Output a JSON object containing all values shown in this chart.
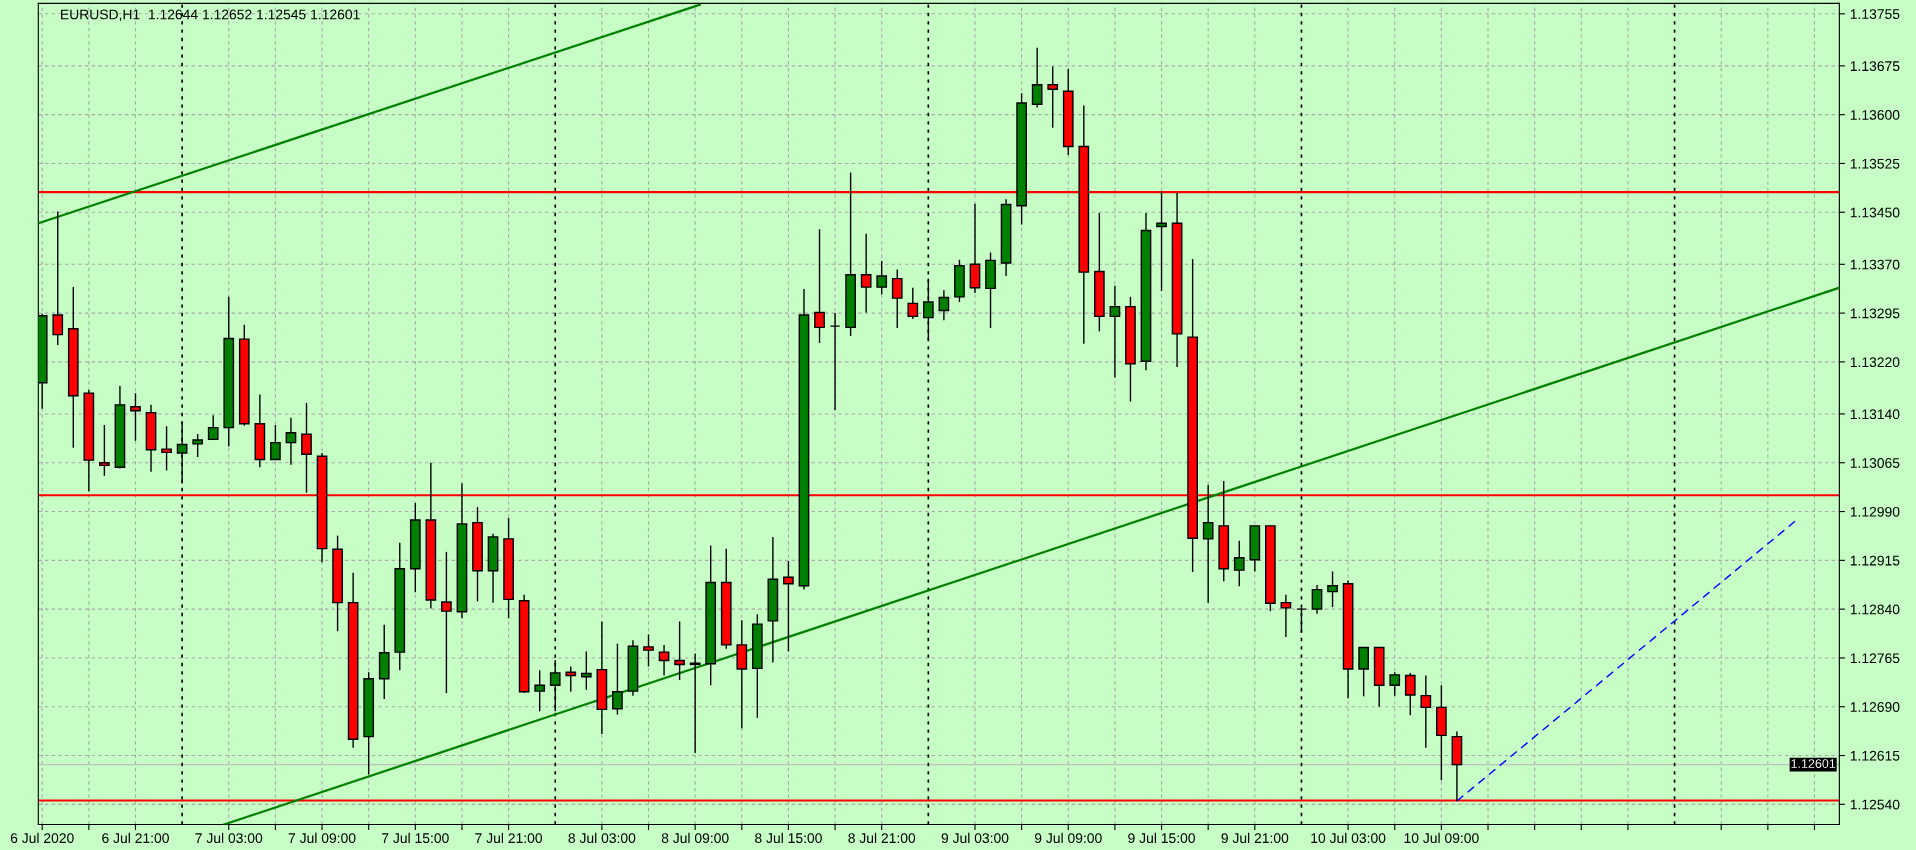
{
  "chart_data": {
    "type": "candlestick",
    "title": "EURUSD,H1  1.12644 1.12652 1.12545 1.12601",
    "x": [
      "2020-07-06T15:00",
      "2020-07-06T16:00",
      "2020-07-06T17:00",
      "2020-07-06T18:00",
      "2020-07-06T19:00",
      "2020-07-06T20:00",
      "2020-07-06T21:00",
      "2020-07-06T22:00",
      "2020-07-06T23:00",
      "2020-07-07T00:00",
      "2020-07-07T01:00",
      "2020-07-07T02:00",
      "2020-07-07T03:00",
      "2020-07-07T04:00",
      "2020-07-07T05:00",
      "2020-07-07T06:00",
      "2020-07-07T07:00",
      "2020-07-07T08:00",
      "2020-07-07T09:00",
      "2020-07-07T10:00",
      "2020-07-07T11:00",
      "2020-07-07T12:00",
      "2020-07-07T13:00",
      "2020-07-07T14:00",
      "2020-07-07T15:00",
      "2020-07-07T16:00",
      "2020-07-07T17:00",
      "2020-07-07T18:00",
      "2020-07-07T19:00",
      "2020-07-07T20:00",
      "2020-07-07T21:00",
      "2020-07-07T22:00",
      "2020-07-07T23:00",
      "2020-07-08T00:00",
      "2020-07-08T01:00",
      "2020-07-08T02:00",
      "2020-07-08T03:00",
      "2020-07-08T04:00",
      "2020-07-08T05:00",
      "2020-07-08T06:00",
      "2020-07-08T07:00",
      "2020-07-08T08:00",
      "2020-07-08T09:00",
      "2020-07-08T10:00",
      "2020-07-08T11:00",
      "2020-07-08T12:00",
      "2020-07-08T13:00",
      "2020-07-08T14:00",
      "2020-07-08T15:00",
      "2020-07-08T16:00",
      "2020-07-08T17:00",
      "2020-07-08T18:00",
      "2020-07-08T19:00",
      "2020-07-08T20:00",
      "2020-07-08T21:00",
      "2020-07-08T22:00",
      "2020-07-08T23:00",
      "2020-07-09T00:00",
      "2020-07-09T01:00",
      "2020-07-09T02:00",
      "2020-07-09T03:00",
      "2020-07-09T04:00",
      "2020-07-09T05:00",
      "2020-07-09T06:00",
      "2020-07-09T07:00",
      "2020-07-09T08:00",
      "2020-07-09T09:00",
      "2020-07-09T10:00",
      "2020-07-09T11:00",
      "2020-07-09T12:00",
      "2020-07-09T13:00",
      "2020-07-09T14:00",
      "2020-07-09T15:00",
      "2020-07-09T16:00",
      "2020-07-09T17:00",
      "2020-07-09T18:00",
      "2020-07-09T19:00",
      "2020-07-09T20:00",
      "2020-07-09T21:00",
      "2020-07-09T22:00",
      "2020-07-09T23:00",
      "2020-07-10T00:00",
      "2020-07-10T01:00",
      "2020-07-10T02:00",
      "2020-07-10T03:00",
      "2020-07-10T04:00",
      "2020-07-10T05:00",
      "2020-07-10T06:00",
      "2020-07-10T07:00",
      "2020-07-10T08:00",
      "2020-07-10T09:00",
      "2020-07-10T10:00"
    ],
    "ohlc": [
      [
        1.13188,
        1.13294,
        1.13148,
        1.13291
      ],
      [
        1.13292,
        1.13451,
        1.13246,
        1.13262
      ],
      [
        1.13271,
        1.13335,
        1.13088,
        1.13168
      ],
      [
        1.13172,
        1.13177,
        1.13021,
        1.13069
      ],
      [
        1.13065,
        1.13123,
        1.13045,
        1.13061
      ],
      [
        1.13058,
        1.13183,
        1.13056,
        1.13154
      ],
      [
        1.13151,
        1.13172,
        1.13099,
        1.13145
      ],
      [
        1.13142,
        1.13154,
        1.13051,
        1.13085
      ],
      [
        1.13086,
        1.13121,
        1.13053,
        1.13081
      ],
      [
        1.1308,
        1.13128,
        1.13033,
        1.13093
      ],
      [
        1.13094,
        1.13109,
        1.13074,
        1.131
      ],
      [
        1.13101,
        1.13138,
        1.13101,
        1.13119
      ],
      [
        1.13119,
        1.1332,
        1.1309,
        1.13256
      ],
      [
        1.13255,
        1.13277,
        1.13122,
        1.13125
      ],
      [
        1.13125,
        1.1317,
        1.13058,
        1.1307
      ],
      [
        1.1307,
        1.13123,
        1.1307,
        1.13096
      ],
      [
        1.13096,
        1.13134,
        1.13062,
        1.13111
      ],
      [
        1.13109,
        1.13157,
        1.13019,
        1.13078
      ],
      [
        1.13075,
        1.1308,
        1.12912,
        1.12933
      ],
      [
        1.12932,
        1.12953,
        1.12806,
        1.1285
      ],
      [
        1.1285,
        1.12896,
        1.12627,
        1.1264
      ],
      [
        1.12644,
        1.12743,
        1.12586,
        1.12733
      ],
      [
        1.12733,
        1.12816,
        1.12702,
        1.12773
      ],
      [
        1.12774,
        1.12942,
        1.12746,
        1.12902
      ],
      [
        1.12902,
        1.13003,
        1.12866,
        1.12977
      ],
      [
        1.12977,
        1.13065,
        1.12841,
        1.12854
      ],
      [
        1.12851,
        1.12928,
        1.12711,
        1.12837
      ],
      [
        1.12836,
        1.13033,
        1.12826,
        1.12971
      ],
      [
        1.12973,
        1.12997,
        1.12852,
        1.12899
      ],
      [
        1.12899,
        1.12956,
        1.1285,
        1.12951
      ],
      [
        1.12948,
        1.1298,
        1.12826,
        1.12855
      ],
      [
        1.12853,
        1.12862,
        1.12711,
        1.12713
      ],
      [
        1.12714,
        1.12746,
        1.12683,
        1.12723
      ],
      [
        1.12723,
        1.12762,
        1.12683,
        1.12742
      ],
      [
        1.12743,
        1.12752,
        1.12713,
        1.12738
      ],
      [
        1.12736,
        1.12775,
        1.12716,
        1.12741
      ],
      [
        1.12747,
        1.12821,
        1.12648,
        1.12686
      ],
      [
        1.12687,
        1.12787,
        1.12678,
        1.12713
      ],
      [
        1.12714,
        1.12792,
        1.12707,
        1.12783
      ],
      [
        1.12782,
        1.12801,
        1.12752,
        1.12777
      ],
      [
        1.12774,
        1.12785,
        1.12738,
        1.12761
      ],
      [
        1.12761,
        1.12821,
        1.12731,
        1.12755
      ],
      [
        1.12757,
        1.12772,
        1.12619,
        1.12755
      ],
      [
        1.12756,
        1.12938,
        1.12723,
        1.12881
      ],
      [
        1.12881,
        1.12933,
        1.12779,
        1.12785
      ],
      [
        1.12785,
        1.12823,
        1.12657,
        1.12748
      ],
      [
        1.12749,
        1.12832,
        1.12673,
        1.12817
      ],
      [
        1.12822,
        1.12951,
        1.12758,
        1.12886
      ],
      [
        1.12889,
        1.12914,
        1.12775,
        1.12879
      ],
      [
        1.12876,
        1.13332,
        1.1287,
        1.13292
      ],
      [
        1.13296,
        1.13424,
        1.13249,
        1.13273
      ],
      [
        1.13275,
        1.13295,
        1.13146,
        1.13275
      ],
      [
        1.13273,
        1.13511,
        1.1326,
        1.13354
      ],
      [
        1.13354,
        1.13417,
        1.13296,
        1.13335
      ],
      [
        1.13335,
        1.13375,
        1.13324,
        1.13352
      ],
      [
        1.13348,
        1.13362,
        1.13272,
        1.13318
      ],
      [
        1.1331,
        1.13334,
        1.13286,
        1.1329
      ],
      [
        1.13288,
        1.13348,
        1.13254,
        1.13312
      ],
      [
        1.13299,
        1.1333,
        1.13284,
        1.13319
      ],
      [
        1.1332,
        1.13377,
        1.13312,
        1.13368
      ],
      [
        1.1337,
        1.13463,
        1.13326,
        1.13334
      ],
      [
        1.13333,
        1.13388,
        1.13272,
        1.13376
      ],
      [
        1.13372,
        1.1347,
        1.13352,
        1.13462
      ],
      [
        1.1346,
        1.13633,
        1.13431,
        1.13618
      ],
      [
        1.13616,
        1.13703,
        1.13611,
        1.13646
      ],
      [
        1.13646,
        1.13674,
        1.1358,
        1.13639
      ],
      [
        1.13636,
        1.1367,
        1.13538,
        1.13551
      ],
      [
        1.13551,
        1.13614,
        1.13248,
        1.13358
      ],
      [
        1.13359,
        1.13449,
        1.13267,
        1.1329
      ],
      [
        1.1329,
        1.13337,
        1.13196,
        1.13305
      ],
      [
        1.13305,
        1.1332,
        1.13159,
        1.13217
      ],
      [
        1.13221,
        1.13449,
        1.13207,
        1.13422
      ],
      [
        1.13428,
        1.13482,
        1.13329,
        1.13433
      ],
      [
        1.13433,
        1.1348,
        1.13212,
        1.13263
      ],
      [
        1.13258,
        1.13378,
        1.12897,
        1.12949
      ],
      [
        1.12948,
        1.13031,
        1.1285,
        1.12973
      ],
      [
        1.12968,
        1.13037,
        1.12883,
        1.12902
      ],
      [
        1.129,
        1.12945,
        1.12875,
        1.12919
      ],
      [
        1.12916,
        1.12968,
        1.12898,
        1.12968
      ],
      [
        1.12968,
        1.12968,
        1.12837,
        1.12849
      ],
      [
        1.1285,
        1.12862,
        1.12797,
        1.12842
      ],
      [
        1.1284,
        1.12842,
        1.12804,
        1.1284
      ],
      [
        1.1284,
        1.12877,
        1.12833,
        1.1287
      ],
      [
        1.12867,
        1.12898,
        1.12843,
        1.12876
      ],
      [
        1.12879,
        1.12884,
        1.12703,
        1.12748
      ],
      [
        1.12748,
        1.12781,
        1.12706,
        1.12781
      ],
      [
        1.12781,
        1.12781,
        1.1269,
        1.12723
      ],
      [
        1.12723,
        1.12743,
        1.12707,
        1.12739
      ],
      [
        1.12738,
        1.12742,
        1.12677,
        1.12708
      ],
      [
        1.12707,
        1.12738,
        1.12627,
        1.12689
      ],
      [
        1.12689,
        1.12723,
        1.12577,
        1.12646
      ],
      [
        1.12644,
        1.12652,
        1.12545,
        1.12601
      ]
    ],
    "series": [
      {
        "type": "line",
        "x": [
          "2020-07-06T14:45",
          "2020-07-08T09:18"
        ],
        "values": [
          1.13433,
          1.13769
        ],
        "color": "#008000",
        "line_style": "solid"
      },
      {
        "type": "line",
        "x": [
          "2020-07-07T02:42",
          "2020-07-11T10:36"
        ],
        "values": [
          1.12509,
          1.13334
        ],
        "color": "#008000",
        "line_style": "solid"
      },
      {
        "type": "line",
        "x": [
          "2020-07-10T10:00",
          "2020-07-11T08:00"
        ],
        "values": [
          1.12545,
          1.1298
        ],
        "color": "#0000ff",
        "line_style": "dashed"
      }
    ],
    "xlim": [
      "2020-07-06T14:45",
      "2020-07-11T10:36"
    ],
    "ylim": [
      1.12509,
      1.13771
    ],
    "xticks": [
      {
        "value": "2020-07-06T15:00",
        "label": "6 Jul 2020"
      },
      {
        "value": "2020-07-06T18:00",
        "label": null
      },
      {
        "value": "2020-07-06T21:00",
        "label": "6 Jul 21:00"
      },
      {
        "value": "2020-07-07T03:00",
        "label": "7 Jul 03:00"
      },
      {
        "value": "2020-07-07T06:00",
        "label": null
      },
      {
        "value": "2020-07-07T09:00",
        "label": "7 Jul 09:00"
      },
      {
        "value": "2020-07-07T12:00",
        "label": null
      },
      {
        "value": "2020-07-07T15:00",
        "label": "7 Jul 15:00"
      },
      {
        "value": "2020-07-07T18:00",
        "label": null
      },
      {
        "value": "2020-07-07T21:00",
        "label": "7 Jul 21:00"
      },
      {
        "value": "2020-07-08T03:00",
        "label": "8 Jul 03:00"
      },
      {
        "value": "2020-07-08T06:00",
        "label": null
      },
      {
        "value": "2020-07-08T09:00",
        "label": "8 Jul 09:00"
      },
      {
        "value": "2020-07-08T12:00",
        "label": null
      },
      {
        "value": "2020-07-08T15:00",
        "label": "8 Jul 15:00"
      },
      {
        "value": "2020-07-08T18:00",
        "label": null
      },
      {
        "value": "2020-07-08T21:00",
        "label": "8 Jul 21:00"
      },
      {
        "value": "2020-07-09T03:00",
        "label": "9 Jul 03:00"
      },
      {
        "value": "2020-07-09T06:00",
        "label": null
      },
      {
        "value": "2020-07-09T09:00",
        "label": "9 Jul 09:00"
      },
      {
        "value": "2020-07-09T12:00",
        "label": null
      },
      {
        "value": "2020-07-09T15:00",
        "label": "9 Jul 15:00"
      },
      {
        "value": "2020-07-09T18:00",
        "label": null
      },
      {
        "value": "2020-07-09T21:00",
        "label": "9 Jul 21:00"
      },
      {
        "value": "2020-07-10T03:00",
        "label": "10 Jul 03:00"
      },
      {
        "value": "2020-07-10T06:00",
        "label": null
      },
      {
        "value": "2020-07-10T09:00",
        "label": "10 Jul 09:00"
      },
      {
        "value": "2020-07-10T12:00",
        "label": null
      },
      {
        "value": "2020-07-10T15:00",
        "label": null
      },
      {
        "value": "2020-07-10T18:00",
        "label": null
      },
      {
        "value": "2020-07-10T21:00",
        "label": null
      },
      {
        "value": "2020-07-11T03:00",
        "label": null
      },
      {
        "value": "2020-07-11T06:00",
        "label": null
      },
      {
        "value": "2020-07-11T09:00",
        "label": null
      }
    ],
    "yticks": [
      {
        "value": 1.1254,
        "label": "1.12540"
      },
      1.12615,
      {
        "value": 1.1269,
        "label": "1.12690"
      },
      1.12765,
      {
        "value": 1.1284,
        "label": "1.12840"
      },
      1.12915,
      {
        "value": 1.1299,
        "label": "1.12990"
      },
      1.13065,
      {
        "value": 1.1314,
        "label": "1.13140"
      },
      {
        "value": 1.1322,
        "label": "1.13220"
      },
      1.13295,
      {
        "value": 1.1337,
        "label": "1.13370"
      },
      {
        "value": 1.1345,
        "label": "1.13450"
      },
      1.13525,
      {
        "value": 1.136,
        "label": "1.13600"
      },
      1.13675,
      1.13755
    ],
    "grid": true,
    "ref_lines": [
      {
        "axis": "y",
        "value": 1.13481,
        "color": "#ff0000",
        "line_style": "solid"
      },
      {
        "axis": "y",
        "value": 1.13015,
        "color": "#ff0000",
        "line_style": "solid"
      },
      {
        "axis": "y",
        "value": 1.12546,
        "color": "#ff0000",
        "line_style": "solid"
      },
      {
        "axis": "y",
        "value": 1.12601,
        "label": "1.12601",
        "color": "#c0c0c0",
        "line_style": "solid"
      },
      {
        "axis": "x",
        "value": "2020-07-07T00:00",
        "color": "#000000",
        "line_style": "dotted"
      },
      {
        "axis": "x",
        "value": "2020-07-08T00:00",
        "color": "#000000",
        "line_style": "dotted"
      },
      {
        "axis": "x",
        "value": "2020-07-09T00:00",
        "color": "#000000",
        "line_style": "dotted"
      },
      {
        "axis": "x",
        "value": "2020-07-10T00:00",
        "color": "#000000",
        "line_style": "dotted"
      },
      {
        "axis": "x",
        "value": "2020-07-11T00:00",
        "color": "#000000",
        "line_style": "dotted"
      }
    ]
  }
}
